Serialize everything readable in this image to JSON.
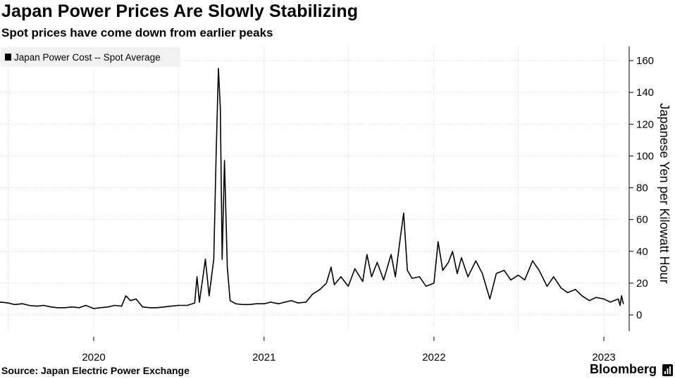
{
  "header": {
    "title": "Japan Power Prices Are Slowly Stabilizing",
    "subtitle": "Spot prices have come down from earlier peaks"
  },
  "footer": {
    "source": "Source: Japan Electric Power Exchange",
    "brand": "Bloomberg"
  },
  "icons": {
    "legend_swatch": "square-swatch-icon",
    "brand_mark": "bloomberg-terminal-icon"
  },
  "colors": {
    "line": "#000000",
    "grid": "#d0d0d0",
    "legend_bg": "#f2f2f2",
    "axis": "#000000"
  },
  "chart_data": {
    "type": "line",
    "title": "Japan Power Prices Are Slowly Stabilizing",
    "subtitle": "Spot prices have come down from earlier peaks",
    "xlabel": "",
    "ylabel": "Japanese Yen per Kilowatt Hour",
    "ylim": [
      0,
      170
    ],
    "xlim": [
      "2019-06-01",
      "2023-02-28"
    ],
    "y_ticks": [
      0,
      20,
      40,
      60,
      80,
      100,
      120,
      140,
      160
    ],
    "x_ticks": [
      {
        "date": "2020-01-01",
        "label": "2020"
      },
      {
        "date": "2021-01-01",
        "label": "2021"
      },
      {
        "date": "2022-01-01",
        "label": "2022"
      },
      {
        "date": "2023-01-01",
        "label": "2023"
      }
    ],
    "x_axis_position": "bottom",
    "y_axis_position": "right",
    "grid": true,
    "legend_position": "top-left",
    "series": [
      {
        "name": "Japan Power Cost -- Spot Average",
        "points": [
          [
            "2019-06-01",
            7
          ],
          [
            "2019-06-15",
            8
          ],
          [
            "2019-07-01",
            7.5
          ],
          [
            "2019-07-15",
            6.5
          ],
          [
            "2019-08-01",
            7
          ],
          [
            "2019-08-15",
            6
          ],
          [
            "2019-09-01",
            5.5
          ],
          [
            "2019-09-15",
            6
          ],
          [
            "2019-10-01",
            5
          ],
          [
            "2019-10-15",
            4.5
          ],
          [
            "2019-11-01",
            4.5
          ],
          [
            "2019-11-15",
            5
          ],
          [
            "2019-12-01",
            4.5
          ],
          [
            "2019-12-15",
            6
          ],
          [
            "2020-01-01",
            4
          ],
          [
            "2020-01-15",
            4.5
          ],
          [
            "2020-02-01",
            5
          ],
          [
            "2020-02-15",
            6
          ],
          [
            "2020-03-01",
            5.5
          ],
          [
            "2020-03-10",
            12
          ],
          [
            "2020-03-20",
            9
          ],
          [
            "2020-04-01",
            10
          ],
          [
            "2020-04-15",
            5
          ],
          [
            "2020-05-01",
            4.5
          ],
          [
            "2020-05-15",
            4.5
          ],
          [
            "2020-06-01",
            5
          ],
          [
            "2020-06-15",
            5.5
          ],
          [
            "2020-07-01",
            6
          ],
          [
            "2020-07-20",
            6
          ],
          [
            "2020-08-05",
            7.5
          ],
          [
            "2020-08-10",
            24
          ],
          [
            "2020-08-15",
            8
          ],
          [
            "2020-08-28",
            35
          ],
          [
            "2020-09-05",
            12
          ],
          [
            "2020-09-15",
            35
          ],
          [
            "2020-09-20",
            100
          ],
          [
            "2020-09-25",
            155
          ],
          [
            "2020-09-29",
            130
          ],
          [
            "2020-10-03",
            35
          ],
          [
            "2020-10-08",
            97
          ],
          [
            "2020-10-14",
            30
          ],
          [
            "2020-10-20",
            9
          ],
          [
            "2020-11-01",
            7
          ],
          [
            "2020-11-15",
            6.5
          ],
          [
            "2020-12-01",
            6.5
          ],
          [
            "2020-12-15",
            7
          ],
          [
            "2021-01-01",
            7
          ],
          [
            "2021-01-15",
            8
          ],
          [
            "2021-02-01",
            7
          ],
          [
            "2021-02-15",
            8
          ],
          [
            "2021-03-01",
            9
          ],
          [
            "2021-03-15",
            7.5
          ],
          [
            "2021-04-01",
            8
          ],
          [
            "2021-04-15",
            13
          ],
          [
            "2021-05-01",
            16
          ],
          [
            "2021-05-15",
            20
          ],
          [
            "2021-05-25",
            30
          ],
          [
            "2021-06-01",
            19
          ],
          [
            "2021-06-15",
            24
          ],
          [
            "2021-07-01",
            18
          ],
          [
            "2021-07-15",
            29
          ],
          [
            "2021-08-01",
            21
          ],
          [
            "2021-08-10",
            38
          ],
          [
            "2021-08-20",
            24
          ],
          [
            "2021-09-01",
            33
          ],
          [
            "2021-09-15",
            22
          ],
          [
            "2021-10-01",
            38
          ],
          [
            "2021-10-10",
            24
          ],
          [
            "2021-10-20",
            47
          ],
          [
            "2021-10-28",
            64
          ],
          [
            "2021-11-05",
            28
          ],
          [
            "2021-11-15",
            23
          ],
          [
            "2021-12-01",
            24
          ],
          [
            "2021-12-15",
            18
          ],
          [
            "2022-01-01",
            20
          ],
          [
            "2022-01-10",
            46
          ],
          [
            "2022-01-20",
            28
          ],
          [
            "2022-02-01",
            33
          ],
          [
            "2022-02-10",
            40
          ],
          [
            "2022-02-20",
            26
          ],
          [
            "2022-03-01",
            36
          ],
          [
            "2022-03-15",
            24
          ],
          [
            "2022-04-01",
            34
          ],
          [
            "2022-04-15",
            26
          ],
          [
            "2022-05-01",
            10
          ],
          [
            "2022-05-15",
            26
          ],
          [
            "2022-06-01",
            28
          ],
          [
            "2022-06-15",
            22
          ],
          [
            "2022-07-01",
            25
          ],
          [
            "2022-07-15",
            22
          ],
          [
            "2022-08-01",
            34
          ],
          [
            "2022-08-15",
            28
          ],
          [
            "2022-09-01",
            18
          ],
          [
            "2022-09-15",
            24
          ],
          [
            "2022-10-01",
            17
          ],
          [
            "2022-10-15",
            14
          ],
          [
            "2022-11-01",
            16
          ],
          [
            "2022-11-15",
            12
          ],
          [
            "2022-12-01",
            9
          ],
          [
            "2022-12-15",
            11
          ],
          [
            "2023-01-01",
            10
          ],
          [
            "2023-01-15",
            8
          ],
          [
            "2023-02-01",
            10
          ],
          [
            "2023-02-05",
            6
          ],
          [
            "2023-02-08",
            12
          ],
          [
            "2023-02-12",
            7
          ]
        ]
      }
    ]
  }
}
